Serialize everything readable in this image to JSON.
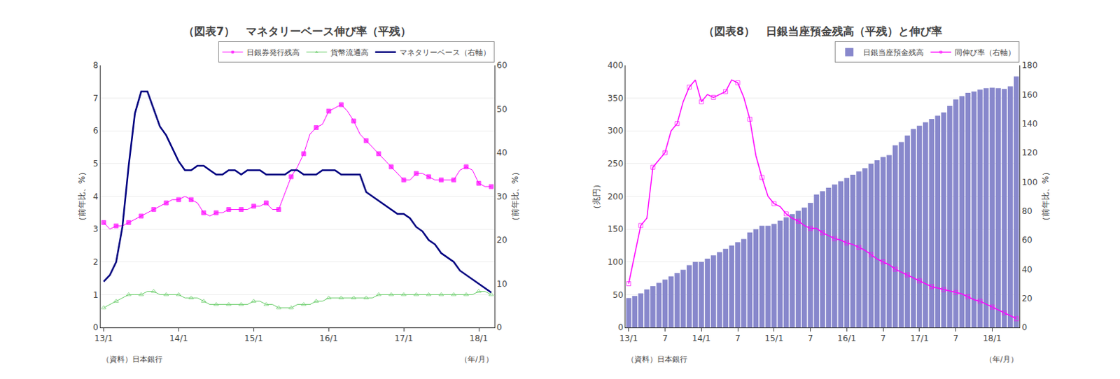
{
  "chart_data": [
    {
      "type": "line",
      "title": "（図表7）　マネタリーベース伸び率（平残）",
      "xlabel": "（年/月）",
      "ylabel": "（前年比、%）",
      "y2label": "（前年比、%）",
      "annotations": [
        "（資料）日本銀行"
      ],
      "categories": [
        "13/1",
        null,
        null,
        null,
        null,
        null,
        null,
        null,
        null,
        null,
        null,
        null,
        "14/1",
        null,
        null,
        null,
        null,
        null,
        null,
        null,
        null,
        null,
        null,
        null,
        "15/1",
        null,
        null,
        null,
        null,
        null,
        null,
        null,
        null,
        null,
        null,
        null,
        "16/1",
        null,
        null,
        null,
        null,
        null,
        null,
        null,
        null,
        null,
        null,
        null,
        "17/1",
        null,
        null,
        null,
        null,
        null,
        null,
        null,
        null,
        null,
        null,
        null,
        "18/1",
        null,
        null
      ],
      "series": [
        {
          "name": "日銀券発行残高",
          "color": "#FF00FF",
          "marker": "square",
          "values": [
            3.2,
            3.0,
            3.1,
            3.1,
            3.2,
            3.3,
            3.4,
            3.5,
            3.6,
            3.7,
            3.8,
            3.9,
            3.9,
            4.0,
            3.9,
            3.8,
            3.5,
            3.4,
            3.5,
            3.5,
            3.6,
            3.6,
            3.6,
            3.6,
            3.7,
            3.7,
            3.8,
            3.6,
            3.6,
            4.1,
            4.6,
            4.9,
            5.3,
            5.9,
            6.1,
            6.2,
            6.6,
            6.7,
            6.8,
            6.6,
            6.3,
            5.9,
            5.7,
            5.5,
            5.3,
            5.1,
            4.9,
            4.7,
            4.5,
            4.5,
            4.7,
            4.7,
            4.6,
            4.5,
            4.5,
            4.5,
            4.5,
            4.8,
            4.9,
            4.8,
            4.4,
            4.3,
            4.3
          ]
        },
        {
          "name": "貨幣流通高",
          "color": "#66CC66",
          "marker": "triangle-up-open",
          "values": [
            0.6,
            0.7,
            0.8,
            0.9,
            1.0,
            1.0,
            1.0,
            1.1,
            1.1,
            1.0,
            1.0,
            1.0,
            1.0,
            0.9,
            0.9,
            0.9,
            0.8,
            0.7,
            0.7,
            0.7,
            0.7,
            0.7,
            0.7,
            0.7,
            0.8,
            0.8,
            0.7,
            0.7,
            0.6,
            0.6,
            0.6,
            0.7,
            0.7,
            0.7,
            0.8,
            0.8,
            0.9,
            0.9,
            0.9,
            0.9,
            0.9,
            0.9,
            0.9,
            0.9,
            1.0,
            1.0,
            1.0,
            1.0,
            1.0,
            1.0,
            1.0,
            1.0,
            1.0,
            1.0,
            1.0,
            1.0,
            1.0,
            1.0,
            1.0,
            1.0,
            1.1,
            1.1,
            1.0
          ]
        },
        {
          "name": "マネタリーベース（右軸）",
          "color": "#000080",
          "axis": "y2",
          "values": [
            10.5,
            12,
            15,
            23,
            37,
            49,
            54,
            54,
            50,
            46,
            44,
            41,
            38,
            36,
            36,
            37,
            37,
            36,
            35,
            35,
            36,
            36,
            35,
            36,
            36,
            36,
            35,
            35,
            35,
            35,
            36,
            36,
            35,
            35,
            35,
            36,
            36,
            36,
            35,
            35,
            35,
            35,
            31,
            30,
            29,
            28,
            27,
            26,
            26,
            25,
            23,
            22,
            20,
            19,
            17,
            16,
            15,
            13,
            12,
            11,
            10,
            9,
            8
          ]
        }
      ],
      "ylim": [
        0,
        8
      ],
      "yticks": [
        0,
        1,
        2,
        3,
        4,
        5,
        6,
        7,
        8
      ],
      "y2lim": [
        0,
        60
      ],
      "y2ticks": [
        0,
        10,
        20,
        30,
        40,
        50,
        60
      ],
      "grid": true,
      "legend": "upper right"
    },
    {
      "type": "bar",
      "title": "（図表8）　日銀当座預金残高（平残）と伸び率",
      "xlabel": "（年/月）",
      "ylabel": "（兆円）",
      "y2label": "（前年比、%）",
      "annotations": [
        "（資料）日本銀行"
      ],
      "categories": [
        "13/1",
        null,
        null,
        null,
        null,
        null,
        "7",
        null,
        null,
        null,
        null,
        null,
        "14/1",
        null,
        null,
        null,
        null,
        null,
        "7",
        null,
        null,
        null,
        null,
        null,
        "15/1",
        null,
        null,
        null,
        null,
        null,
        "7",
        null,
        null,
        null,
        null,
        null,
        "16/1",
        null,
        null,
        null,
        null,
        null,
        "7",
        null,
        null,
        null,
        null,
        null,
        "17/1",
        null,
        null,
        null,
        null,
        null,
        "7",
        null,
        null,
        null,
        null,
        null,
        "18/1",
        null,
        null,
        null,
        null
      ],
      "series": [
        {
          "name": "日銀当座預金残高",
          "type": "bar",
          "color": "#8888CC",
          "values": [
            45,
            48,
            52,
            58,
            63,
            68,
            73,
            78,
            83,
            88,
            95,
            100,
            100,
            105,
            110,
            115,
            120,
            125,
            130,
            135,
            145,
            150,
            155,
            155,
            158,
            163,
            168,
            173,
            178,
            183,
            190,
            203,
            208,
            213,
            218,
            223,
            228,
            233,
            238,
            243,
            250,
            255,
            260,
            263,
            278,
            283,
            293,
            303,
            308,
            313,
            318,
            323,
            328,
            338,
            348,
            353,
            358,
            360,
            363,
            365,
            366,
            365,
            364,
            368,
            383
          ]
        },
        {
          "name": "同伸び率（右軸）",
          "type": "line",
          "color": "#FF00FF",
          "marker": "square-open",
          "axis": "y2",
          "values": [
            30,
            50,
            70,
            75,
            110,
            115,
            120,
            135,
            140,
            155,
            165,
            170,
            155,
            160,
            158,
            160,
            162,
            170,
            168,
            158,
            143,
            118,
            103,
            90,
            85,
            83,
            78,
            75,
            73,
            70,
            68,
            68,
            65,
            63,
            61,
            60,
            58,
            57,
            55,
            53,
            50,
            47,
            45,
            43,
            40,
            38,
            36,
            34,
            32,
            30,
            28,
            27,
            26,
            25,
            24,
            23,
            21,
            19,
            18,
            16,
            14,
            12,
            10,
            8,
            6
          ]
        }
      ],
      "ylim": [
        0,
        400
      ],
      "yticks": [
        0,
        50,
        100,
        150,
        200,
        250,
        300,
        350,
        400
      ],
      "y2lim": [
        0,
        180
      ],
      "y2ticks": [
        0,
        20,
        40,
        60,
        80,
        100,
        120,
        140,
        160,
        180
      ],
      "grid": true,
      "legend": "upper right"
    }
  ]
}
